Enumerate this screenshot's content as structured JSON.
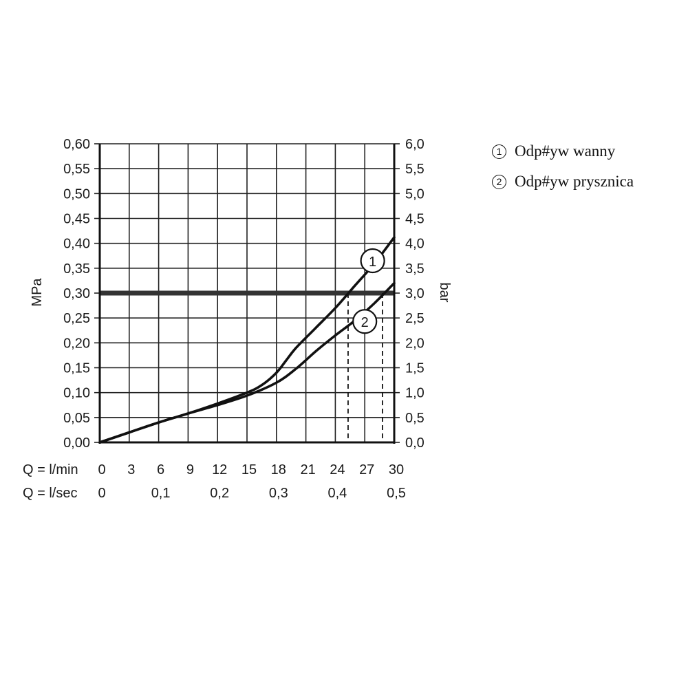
{
  "chart_data": {
    "type": "line",
    "y_left_label": "MPa",
    "y_right_label": "bar",
    "x_label_lmin": "Q = l/min",
    "x_label_lsec": "Q = l/sec",
    "x_ticks_lmin": [
      "0",
      "3",
      "6",
      "9",
      "12",
      "15",
      "18",
      "21",
      "24",
      "27",
      "30"
    ],
    "x_ticks_lsec": [
      "0",
      "0,1",
      "0,2",
      "0,3",
      "0,4",
      "0,5"
    ],
    "y_ticks_left": [
      "0,00",
      "0,05",
      "0,10",
      "0,15",
      "0,20",
      "0,25",
      "0,30",
      "0,35",
      "0,40",
      "0,45",
      "0,50",
      "0,55",
      "0,60"
    ],
    "y_ticks_right": [
      "0,0",
      "0,5",
      "1,0",
      "1,5",
      "2,0",
      "2,5",
      "3,0",
      "3,5",
      "4,0",
      "4,5",
      "5,0",
      "5,5",
      "6,0"
    ],
    "xlim": [
      0,
      30
    ],
    "ylim": [
      0,
      0.6
    ],
    "grid": true,
    "reference_line": {
      "y": 0.3
    },
    "dashed_markers": [
      {
        "x": 25.3,
        "y": 0.3
      },
      {
        "x": 28.8,
        "y": 0.3
      }
    ],
    "series": [
      {
        "name": "1",
        "color": "#111111",
        "x": [
          0,
          3,
          6,
          9,
          12,
          15,
          16.5,
          18,
          19,
          20,
          22,
          24,
          26,
          28,
          30
        ],
        "y": [
          0,
          0.02,
          0.04,
          0.058,
          0.078,
          0.1,
          0.115,
          0.14,
          0.165,
          0.19,
          0.23,
          0.27,
          0.315,
          0.36,
          0.412
        ]
      },
      {
        "name": "2",
        "color": "#111111",
        "x": [
          0,
          3,
          6,
          9,
          12,
          15,
          18,
          20,
          22,
          24,
          26,
          28,
          30
        ],
        "y": [
          0,
          0.02,
          0.04,
          0.058,
          0.075,
          0.094,
          0.12,
          0.148,
          0.183,
          0.215,
          0.245,
          0.28,
          0.32
        ]
      }
    ]
  },
  "legend": [
    {
      "num": "1",
      "label": "Odp#yw wanny"
    },
    {
      "num": "2",
      "label": "Odp#yw prysznica"
    }
  ]
}
